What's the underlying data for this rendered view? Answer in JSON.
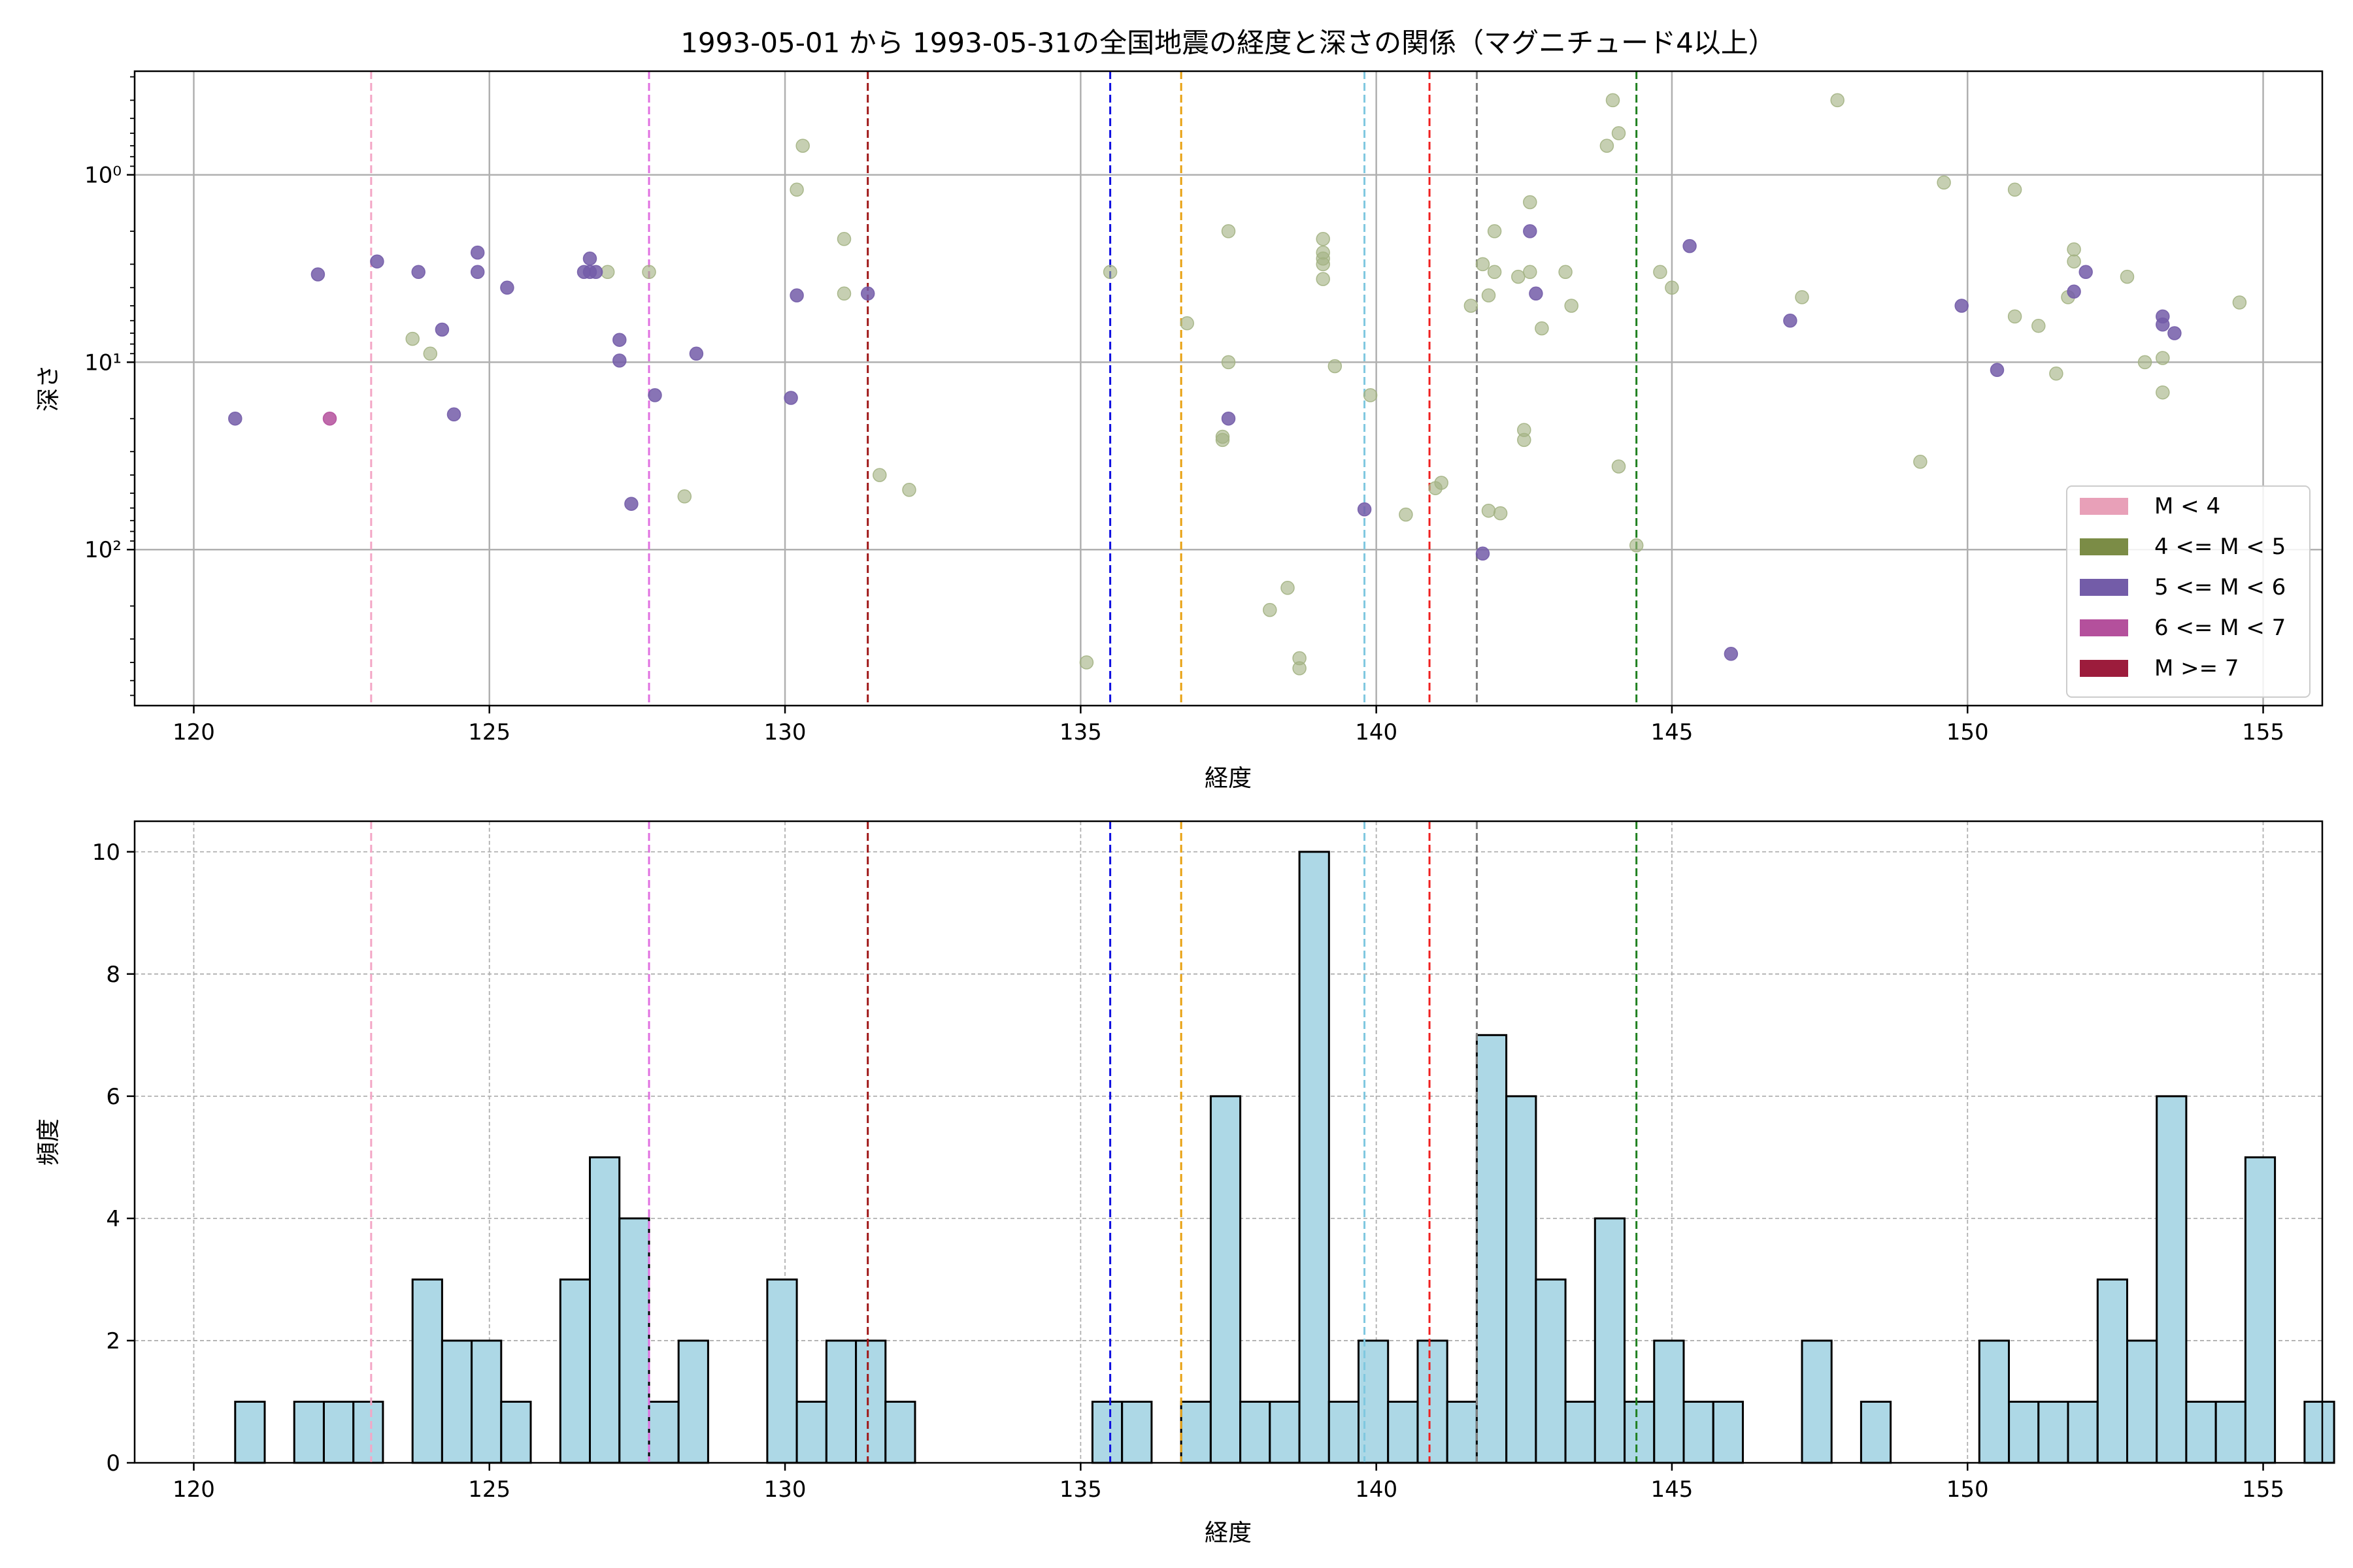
{
  "chart_data": [
    {
      "type": "scatter",
      "title": "1993-05-01 から 1993-05-31の全国地震の経度と深さの関係（マグニチュード4以上）",
      "xlabel": "経度",
      "ylabel": "深さ",
      "xlim": [
        119,
        156
      ],
      "xticks": [
        120,
        125,
        130,
        135,
        140,
        145,
        150,
        155
      ],
      "ylim": [
        680,
        0.28
      ],
      "yscale": "log",
      "yinverted": true,
      "yticks": [
        {
          "value": 1,
          "label": "10⁰"
        },
        {
          "value": 10,
          "label": "10¹"
        },
        {
          "value": 100,
          "label": "10²"
        }
      ],
      "grid": true,
      "legend_position": "lower-right",
      "legend": [
        {
          "label": "M < 4",
          "color": "#e8a0b8"
        },
        {
          "label": "4 <= M < 5",
          "color": "#7b8c46"
        },
        {
          "label": "5 <= M < 6",
          "color": "#735ca8"
        },
        {
          "label": "6 <= M < 7",
          "color": "#b4509c"
        },
        {
          "label": "M >= 7",
          "color": "#9c1c3c"
        }
      ],
      "vlines": [
        {
          "x": 123.0,
          "color": "#f4a6c6"
        },
        {
          "x": 127.7,
          "color": "#e070e0"
        },
        {
          "x": 131.4,
          "color": "#a01818"
        },
        {
          "x": 135.5,
          "color": "#1010e0"
        },
        {
          "x": 136.7,
          "color": "#e8a010"
        },
        {
          "x": 139.8,
          "color": "#80c8e0"
        },
        {
          "x": 140.9,
          "color": "#f02020"
        },
        {
          "x": 141.7,
          "color": "#808080"
        },
        {
          "x": 144.4,
          "color": "#208020"
        }
      ],
      "series": [
        {
          "color": "#a3b283",
          "points": [
            [
              123.7,
              7.5
            ],
            [
              124.0,
              9.0
            ],
            [
              127.0,
              3.3
            ],
            [
              127.7,
              3.3
            ],
            [
              128.3,
              52
            ],
            [
              130.2,
              1.2
            ],
            [
              130.3,
              0.7
            ],
            [
              131.0,
              2.2
            ],
            [
              131.0,
              4.3
            ],
            [
              131.6,
              40
            ],
            [
              132.1,
              48
            ],
            [
              135.1,
              400
            ],
            [
              135.5,
              3.3
            ],
            [
              136.8,
              6.2
            ],
            [
              137.4,
              25
            ],
            [
              137.5,
              2.0
            ],
            [
              137.5,
              10
            ],
            [
              137.4,
              26
            ],
            [
              138.2,
              210
            ],
            [
              138.5,
              160
            ],
            [
              138.7,
              380
            ],
            [
              138.7,
              430
            ],
            [
              139.1,
              2.2
            ],
            [
              139.1,
              2.6
            ],
            [
              139.1,
              2.8
            ],
            [
              139.1,
              3.0
            ],
            [
              139.1,
              3.6
            ],
            [
              139.3,
              10.5
            ],
            [
              139.9,
              15
            ],
            [
              140.5,
              65
            ],
            [
              141.0,
              47
            ],
            [
              141.1,
              44
            ],
            [
              141.6,
              5.0
            ],
            [
              141.8,
              3.0
            ],
            [
              141.9,
              4.4
            ],
            [
              141.9,
              62
            ],
            [
              142.0,
              2.0
            ],
            [
              142.0,
              3.3
            ],
            [
              142.1,
              64
            ],
            [
              142.4,
              3.5
            ],
            [
              142.5,
              23
            ],
            [
              142.5,
              26
            ],
            [
              142.6,
              1.4
            ],
            [
              142.6,
              3.3
            ],
            [
              142.8,
              6.6
            ],
            [
              143.2,
              3.3
            ],
            [
              143.3,
              5.0
            ],
            [
              143.9,
              0.7
            ],
            [
              144.0,
              0.4
            ],
            [
              144.1,
              0.6
            ],
            [
              144.1,
              36
            ],
            [
              144.4,
              95
            ],
            [
              144.8,
              3.3
            ],
            [
              145.0,
              4.0
            ],
            [
              147.2,
              4.5
            ],
            [
              147.8,
              0.4
            ],
            [
              149.2,
              34
            ],
            [
              149.6,
              1.1
            ],
            [
              150.8,
              1.2
            ],
            [
              150.8,
              5.7
            ],
            [
              151.2,
              6.4
            ],
            [
              151.5,
              11.5
            ],
            [
              151.7,
              4.5
            ],
            [
              151.8,
              2.9
            ],
            [
              151.8,
              2.5
            ],
            [
              152.7,
              3.5
            ],
            [
              153.0,
              10
            ],
            [
              153.3,
              9.5
            ],
            [
              153.3,
              14.5
            ],
            [
              154.6,
              4.8
            ]
          ]
        },
        {
          "color": "#735ca8",
          "points": [
            [
              120.7,
              20
            ],
            [
              122.1,
              3.4
            ],
            [
              123.1,
              2.9
            ],
            [
              123.8,
              3.3
            ],
            [
              124.2,
              6.7
            ],
            [
              124.4,
              19
            ],
            [
              124.8,
              2.6
            ],
            [
              124.8,
              3.3
            ],
            [
              125.3,
              4.0
            ],
            [
              126.6,
              3.3
            ],
            [
              126.7,
              2.8
            ],
            [
              126.7,
              3.3
            ],
            [
              126.8,
              3.3
            ],
            [
              127.2,
              7.6
            ],
            [
              127.2,
              9.8
            ],
            [
              127.4,
              57
            ],
            [
              127.8,
              15
            ],
            [
              128.5,
              9.0
            ],
            [
              130.1,
              15.5
            ],
            [
              130.2,
              4.4
            ],
            [
              131.4,
              4.3
            ],
            [
              137.5,
              20
            ],
            [
              139.8,
              61
            ],
            [
              141.8,
              105
            ],
            [
              142.6,
              2.0
            ],
            [
              142.7,
              4.3
            ],
            [
              145.3,
              2.4
            ],
            [
              146.0,
              360
            ],
            [
              147.0,
              6.0
            ],
            [
              149.9,
              5.0
            ],
            [
              150.5,
              11
            ],
            [
              151.8,
              4.2
            ],
            [
              152.0,
              3.3
            ],
            [
              153.3,
              5.7
            ],
            [
              153.3,
              6.3
            ],
            [
              153.5,
              7.0
            ]
          ]
        },
        {
          "color": "#b4509c",
          "points": [
            [
              122.3,
              20
            ]
          ]
        }
      ]
    },
    {
      "type": "bar",
      "subtype": "histogram",
      "xlabel": "経度",
      "ylabel": "頻度",
      "xlim": [
        119,
        156
      ],
      "xticks": [
        120,
        125,
        130,
        135,
        140,
        145,
        150,
        155
      ],
      "ylim": [
        0,
        10.5
      ],
      "yticks": [
        0,
        2,
        4,
        6,
        8,
        10
      ],
      "grid": true,
      "bar_color": "#add8e6",
      "bin_start": 120.7,
      "bin_width": 0.5,
      "counts": [
        1,
        0,
        1,
        1,
        1,
        0,
        3,
        2,
        2,
        1,
        0,
        3,
        5,
        4,
        1,
        2,
        0,
        0,
        3,
        1,
        2,
        2,
        1,
        0,
        0,
        0,
        0,
        0,
        0,
        1,
        1,
        0,
        1,
        6,
        1,
        1,
        10,
        1,
        2,
        1,
        2,
        1,
        7,
        6,
        3,
        1,
        4,
        1,
        2,
        1,
        1,
        0,
        0,
        2,
        0,
        1,
        0,
        0,
        0,
        2,
        1,
        1,
        1,
        3,
        2,
        6,
        1,
        1,
        5,
        0,
        1
      ],
      "vlines": [
        {
          "x": 123.0,
          "color": "#f4a6c6"
        },
        {
          "x": 127.7,
          "color": "#e070e0"
        },
        {
          "x": 131.4,
          "color": "#a01818"
        },
        {
          "x": 135.5,
          "color": "#1010e0"
        },
        {
          "x": 136.7,
          "color": "#e8a010"
        },
        {
          "x": 139.8,
          "color": "#80c8e0"
        },
        {
          "x": 140.9,
          "color": "#f02020"
        },
        {
          "x": 141.7,
          "color": "#808080"
        },
        {
          "x": 144.4,
          "color": "#208020"
        }
      ]
    }
  ]
}
